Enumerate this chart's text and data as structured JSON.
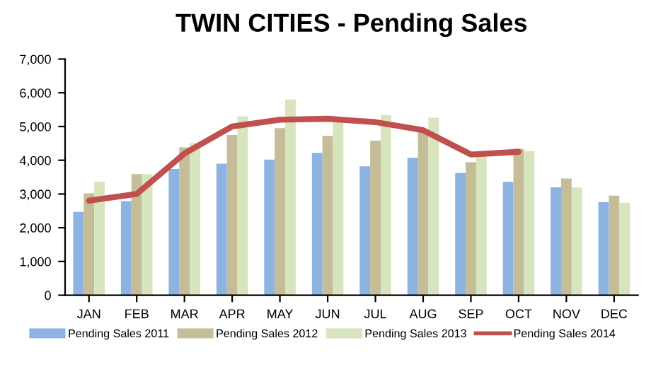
{
  "chart_data": {
    "type": "bar",
    "title": "TWIN CITIES - Pending Sales",
    "categories": [
      "JAN",
      "FEB",
      "MAR",
      "APR",
      "MAY",
      "JUN",
      "JUL",
      "AUG",
      "SEP",
      "OCT",
      "NOV",
      "DEC"
    ],
    "series": [
      {
        "name": "Pending Sales 2011",
        "color": "#8db3e2",
        "values": [
          2470,
          2790,
          3740,
          3900,
          4020,
          4220,
          3820,
          4070,
          3620,
          3360,
          3200,
          2760
        ]
      },
      {
        "name": "Pending Sales 2012",
        "color": "#c4bd97",
        "values": [
          3020,
          3590,
          4380,
          4750,
          4950,
          4720,
          4580,
          4840,
          3940,
          4340,
          3460,
          2950
        ]
      },
      {
        "name": "Pending Sales 2013",
        "color": "#d7e4bd",
        "values": [
          3360,
          3590,
          4510,
          5300,
          5800,
          5200,
          5340,
          5260,
          4120,
          4270,
          3190,
          2740
        ]
      },
      {
        "name": "Pending Sales 2014",
        "color": "#c0504d",
        "type": "line",
        "values": [
          2800,
          3000,
          4200,
          5000,
          5200,
          5230,
          5130,
          4890,
          4170,
          4250,
          null,
          null
        ]
      }
    ],
    "ylim": [
      0,
      7000
    ],
    "yticks": [
      {
        "value": 0,
        "label": "0"
      },
      {
        "value": 1000,
        "label": "1,000"
      },
      {
        "value": 2000,
        "label": "2,000"
      },
      {
        "value": 3000,
        "label": "3,000"
      },
      {
        "value": 4000,
        "label": "4,000"
      },
      {
        "value": 5000,
        "label": "5,000"
      },
      {
        "value": 6000,
        "label": "6,000"
      },
      {
        "value": 7000,
        "label": "7,000"
      }
    ],
    "grid": false,
    "legend": "bottom"
  }
}
